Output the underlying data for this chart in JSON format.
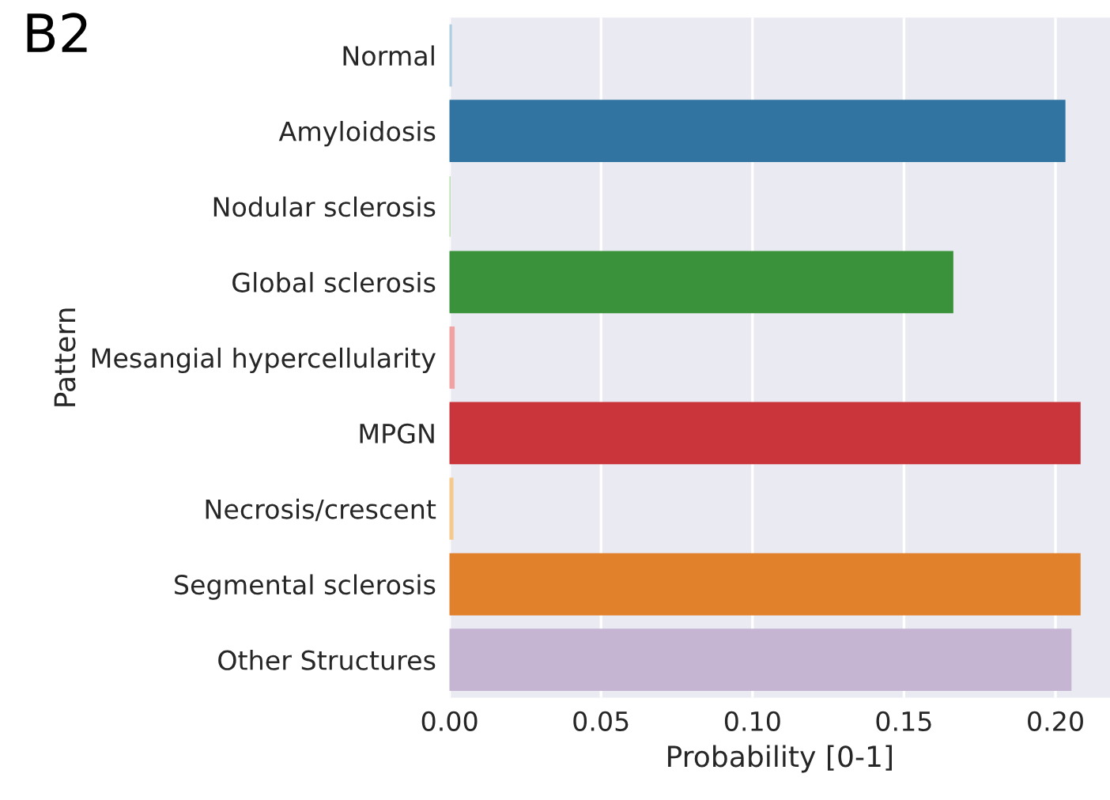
{
  "chart_data": {
    "type": "bar",
    "orientation": "horizontal",
    "ylabel": "Pattern",
    "xlabel": "Probability [0-1]",
    "annotations": [
      "B2"
    ],
    "categories": [
      "Normal",
      "Amyloidosis",
      "Nodular sclerosis",
      "Global sclerosis",
      "Mesangial hypercellularity",
      "MPGN",
      "Necrosis/crescent",
      "Segmental sclerosis",
      "Other Structures"
    ],
    "values": [
      0.0005,
      0.203,
      0.0,
      0.166,
      0.0014,
      0.208,
      0.001,
      0.208,
      0.205
    ],
    "colors": [
      "#aecde3",
      "#3274a1",
      "#9fd68f",
      "#3a923a",
      "#f1a3a3",
      "#c9353a",
      "#f6c98c",
      "#e1812c",
      "#c6b4d3"
    ],
    "xlim": [
      0,
      0.218
    ],
    "xticks": [
      {
        "value": 0,
        "label": "0.00"
      },
      {
        "value": 0.05,
        "label": "0.05"
      },
      {
        "value": 0.1,
        "label": "0.10"
      },
      {
        "value": 0.15,
        "label": "0.15"
      },
      {
        "value": 0.2,
        "label": "0.20"
      }
    ],
    "grid": "x"
  }
}
